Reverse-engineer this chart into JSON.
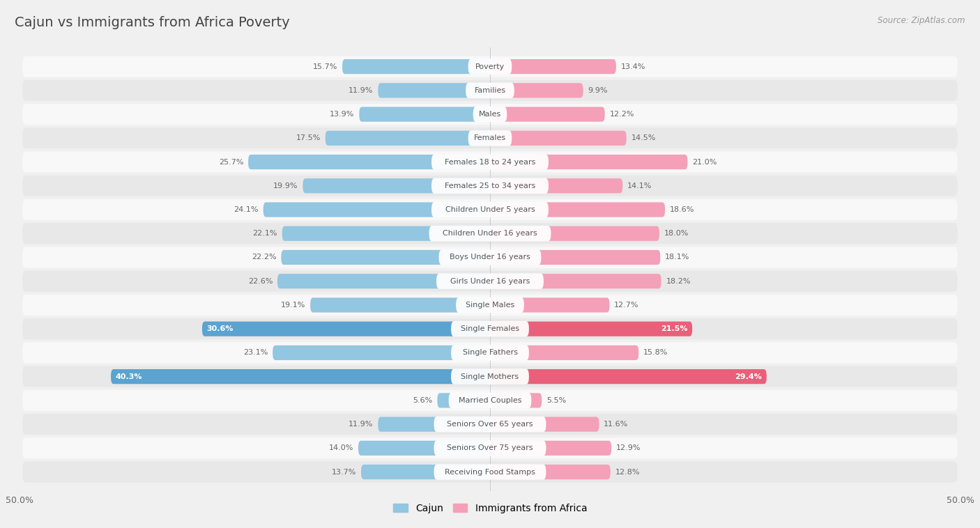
{
  "title": "Cajun vs Immigrants from Africa Poverty",
  "source": "Source: ZipAtlas.com",
  "categories": [
    "Poverty",
    "Families",
    "Males",
    "Females",
    "Females 18 to 24 years",
    "Females 25 to 34 years",
    "Children Under 5 years",
    "Children Under 16 years",
    "Boys Under 16 years",
    "Girls Under 16 years",
    "Single Males",
    "Single Females",
    "Single Fathers",
    "Single Mothers",
    "Married Couples",
    "Seniors Over 65 years",
    "Seniors Over 75 years",
    "Receiving Food Stamps"
  ],
  "cajun_values": [
    15.7,
    11.9,
    13.9,
    17.5,
    25.7,
    19.9,
    24.1,
    22.1,
    22.2,
    22.6,
    19.1,
    30.6,
    23.1,
    40.3,
    5.6,
    11.9,
    14.0,
    13.7
  ],
  "africa_values": [
    13.4,
    9.9,
    12.2,
    14.5,
    21.0,
    14.1,
    18.6,
    18.0,
    18.1,
    18.2,
    12.7,
    21.5,
    15.8,
    29.4,
    5.5,
    11.6,
    12.9,
    12.8
  ],
  "cajun_color": "#93c6e0",
  "africa_color": "#f4a0b8",
  "cajun_highlight_color": "#5ba3d0",
  "africa_highlight_color": "#e8607a",
  "highlight_rows": [
    11,
    13
  ],
  "background_color": "#f0f0f0",
  "row_bg_light": "#f8f8f8",
  "row_bg_dark": "#e8e8e8",
  "axis_limit": 50.0,
  "legend_labels": [
    "Cajun",
    "Immigrants from Africa"
  ]
}
